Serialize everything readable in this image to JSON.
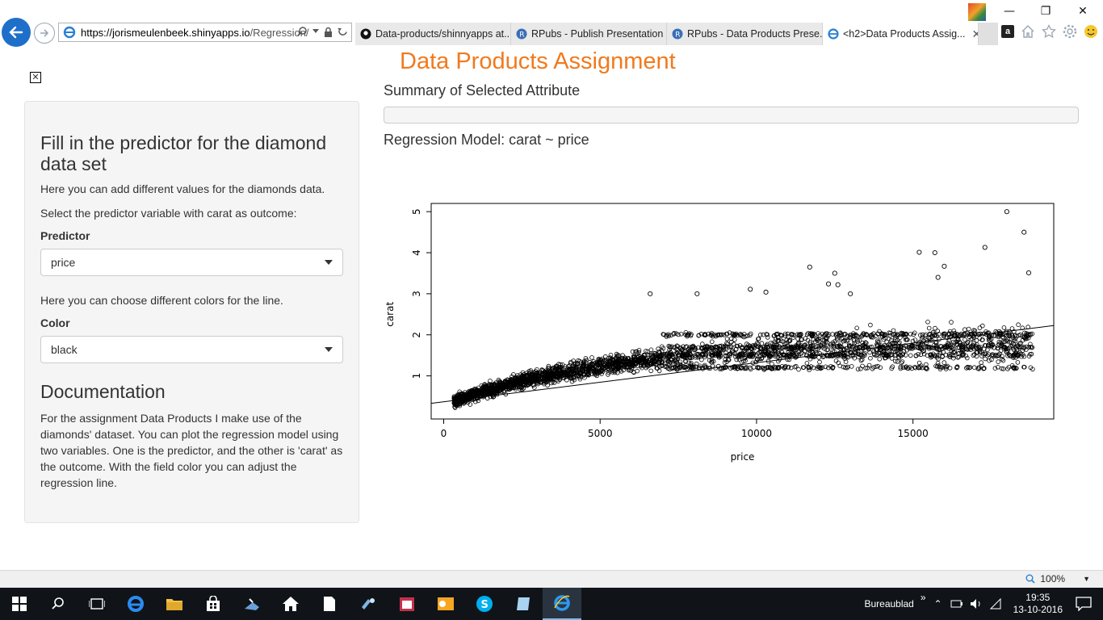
{
  "browser": {
    "url_host": "https://jorismeulenbeek.shinyapps.io",
    "url_path": "/Regression/",
    "tabs": [
      {
        "label": "Data-products/shinnyapps at..."
      },
      {
        "label": "RPubs - Publish Presentation"
      },
      {
        "label": "RPubs - Data Products Prese..."
      },
      {
        "label": "<h2>Data Products Assig..."
      }
    ],
    "active_tab": 3
  },
  "app": {
    "title": "Data Products Assignment",
    "sidebar": {
      "heading": "Fill in the predictor for the diamond data set",
      "intro": "Here you can add different values for the diamonds data.",
      "select_prompt": "Select the predictor variable with carat as outcome:",
      "predictor_label": "Predictor",
      "predictor_value": "price",
      "color_prompt": "Here you can choose different colors for the line.",
      "color_label": "Color",
      "color_value": "black",
      "doc_heading": "Documentation",
      "doc_text": "For the assignment Data Products I make use of the diamonds' dataset. You can plot the regression model using two variables. One is the predictor, and the other is 'carat' as the outcome. With the field color you can adjust the regression line."
    },
    "main": {
      "summary_heading": "Summary of Selected Attribute",
      "model_heading": "Regression Model: carat ~ price"
    }
  },
  "chart_data": {
    "type": "scatter",
    "xlabel": "price",
    "ylabel": "carat",
    "xlim": [
      -400,
      19500
    ],
    "ylim": [
      -0.05,
      5.2
    ],
    "x_ticks": [
      0,
      5000,
      10000,
      15000
    ],
    "y_ticks": [
      1,
      2,
      3,
      4,
      5
    ],
    "x_tick_labels": [
      "0",
      "5000",
      "10000",
      "15000"
    ],
    "y_tick_labels": [
      "1",
      "2",
      "3",
      "4",
      "5"
    ],
    "regression_line": {
      "intercept": 0.37,
      "slope": 9.52e-05,
      "color": "black"
    },
    "notable_points": [
      {
        "x": 18000,
        "y": 5.0
      },
      {
        "x": 18550,
        "y": 4.5
      },
      {
        "x": 17300,
        "y": 4.13
      },
      {
        "x": 15700,
        "y": 4.0
      },
      {
        "x": 15200,
        "y": 4.01
      },
      {
        "x": 11700,
        "y": 3.65
      },
      {
        "x": 16000,
        "y": 3.67
      },
      {
        "x": 12500,
        "y": 3.5
      },
      {
        "x": 18700,
        "y": 3.51
      },
      {
        "x": 15800,
        "y": 3.4
      },
      {
        "x": 12300,
        "y": 3.24
      },
      {
        "x": 12600,
        "y": 3.22
      },
      {
        "x": 9800,
        "y": 3.11
      },
      {
        "x": 6600,
        "y": 3.0
      },
      {
        "x": 8100,
        "y": 3.0
      },
      {
        "x": 10300,
        "y": 3.04
      },
      {
        "x": 13000,
        "y": 3.0
      }
    ]
  },
  "statusbar": {
    "zoom": "100%"
  },
  "taskbar": {
    "desk_label": "Bureaublad",
    "time": "19:35",
    "date": "13-10-2016"
  }
}
